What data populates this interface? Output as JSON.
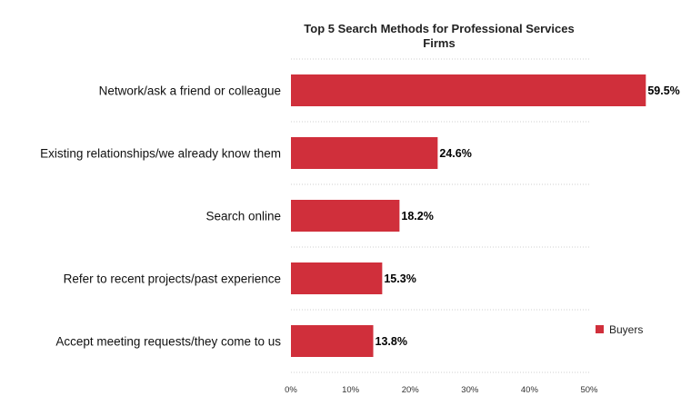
{
  "chart_data": {
    "type": "bar",
    "orientation": "horizontal",
    "title_lines": [
      "Top 5 Search Methods for Professional Services",
      "Firms"
    ],
    "categories": [
      "Network/ask a friend or colleague",
      "Existing relationships/we already know them",
      "Search online",
      "Refer to recent projects/past experience",
      "Accept meeting requests/they come to us"
    ],
    "series": [
      {
        "name": "Buyers",
        "values": [
          59.5,
          24.6,
          18.2,
          15.3,
          13.8
        ],
        "value_labels": [
          "59.5%",
          "24.6%",
          "18.2%",
          "15.3%",
          "13.8%"
        ],
        "color": "#d02f3b"
      }
    ],
    "xlim": [
      0,
      50
    ],
    "x_ticks": [
      0,
      10,
      20,
      30,
      40,
      50
    ],
    "x_tick_labels": [
      "0%",
      "10%",
      "20%",
      "30%",
      "40%",
      "50%"
    ],
    "grid": true,
    "legend_position": "right"
  }
}
